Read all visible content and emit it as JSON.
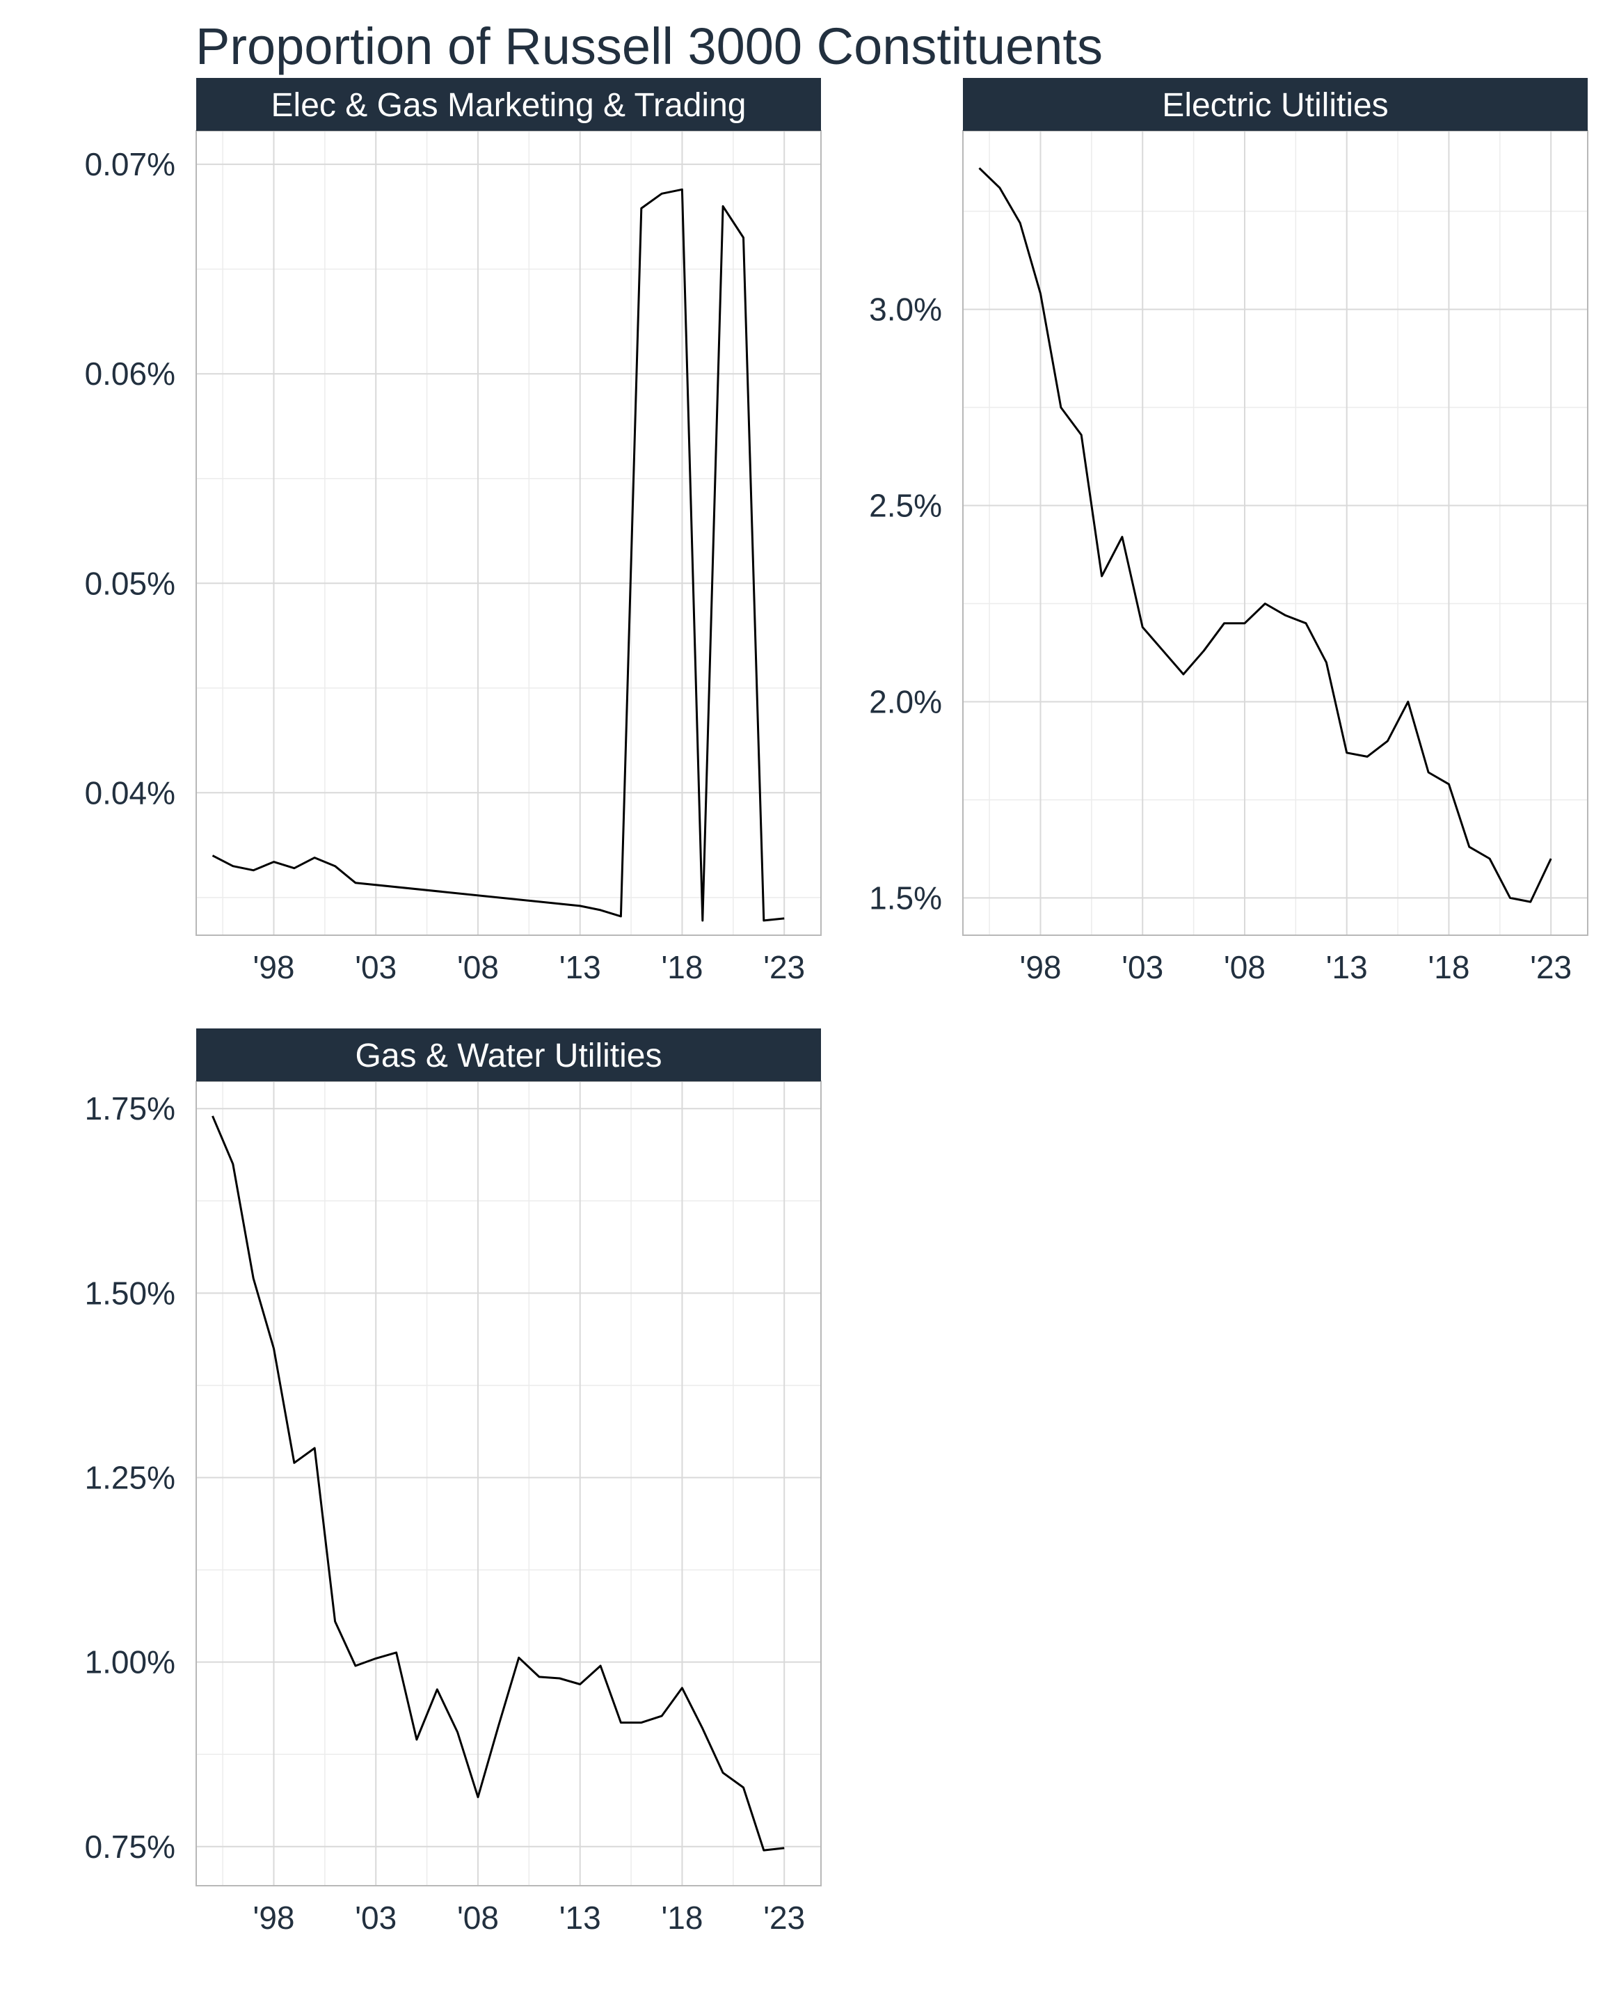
{
  "title": "Proportion of Russell 3000 Constituents",
  "colors": {
    "text": "#22303f",
    "strip": "#22303f",
    "line": "#000000",
    "grid": "#d9d9d9"
  },
  "chart_data": [
    {
      "type": "line",
      "facet": "Elec & Gas Marketing & Trading",
      "x_ticks": [
        1998,
        2003,
        2008,
        2013,
        2018,
        2023
      ],
      "x_tick_labels": [
        "'98",
        "'03",
        "'08",
        "'13",
        "'18",
        "'23"
      ],
      "xlim": [
        1994.2,
        2024.8
      ],
      "y_ticks": [
        0.04,
        0.05,
        0.06,
        0.07
      ],
      "y_tick_labels": [
        "0.04%",
        "0.05%",
        "0.06%",
        "0.07%"
      ],
      "ylim": [
        0.0332,
        0.0716
      ],
      "y_unit": "percent",
      "grid": true,
      "x": [
        1995,
        1996,
        1997,
        1998,
        1999,
        2000,
        2001,
        2002,
        2013,
        2014,
        2015,
        2016,
        2017,
        2018,
        2019,
        2020,
        2021,
        2022,
        2023
      ],
      "values": [
        0.037,
        0.0365,
        0.0363,
        0.0367,
        0.0364,
        0.0369,
        0.0365,
        0.0357,
        0.0346,
        0.0344,
        0.0341,
        0.0679,
        0.0686,
        0.0688,
        0.0339,
        0.068,
        0.0665,
        0.0339,
        0.034
      ]
    },
    {
      "type": "line",
      "facet": "Electric Utilities",
      "x_ticks": [
        1998,
        2003,
        2008,
        2013,
        2018,
        2023
      ],
      "x_tick_labels": [
        "'98",
        "'03",
        "'08",
        "'13",
        "'18",
        "'23"
      ],
      "xlim": [
        1994.2,
        2024.8
      ],
      "y_ticks": [
        1.5,
        2.0,
        2.5,
        3.0
      ],
      "y_tick_labels": [
        "1.5%",
        "2.0%",
        "2.5%",
        "3.0%"
      ],
      "ylim": [
        1.405,
        3.455
      ],
      "y_unit": "percent",
      "grid": true,
      "x": [
        1995,
        1996,
        1997,
        1998,
        1999,
        2000,
        2001,
        2002,
        2003,
        2004,
        2005,
        2006,
        2007,
        2008,
        2009,
        2010,
        2011,
        2012,
        2013,
        2014,
        2015,
        2016,
        2017,
        2018,
        2019,
        2020,
        2021,
        2022,
        2023
      ],
      "values": [
        3.36,
        3.31,
        3.22,
        3.04,
        2.75,
        2.68,
        2.32,
        2.42,
        2.19,
        2.13,
        2.07,
        2.13,
        2.2,
        2.2,
        2.25,
        2.22,
        2.2,
        2.1,
        1.87,
        1.86,
        1.9,
        2.0,
        1.82,
        1.79,
        1.63,
        1.6,
        1.5,
        1.49,
        1.6
      ]
    },
    {
      "type": "line",
      "facet": "Gas & Water Utilities",
      "x_ticks": [
        1998,
        2003,
        2008,
        2013,
        2018,
        2023
      ],
      "x_tick_labels": [
        "'98",
        "'03",
        "'08",
        "'13",
        "'18",
        "'23"
      ],
      "xlim": [
        1994.2,
        2024.8
      ],
      "y_ticks": [
        0.75,
        1.0,
        1.25,
        1.5,
        1.75
      ],
      "y_tick_labels": [
        "0.75%",
        "1.00%",
        "1.25%",
        "1.50%",
        "1.75%"
      ],
      "ylim": [
        0.697,
        1.787
      ],
      "y_unit": "percent",
      "grid": true,
      "x": [
        1995,
        1996,
        1997,
        1998,
        1999,
        2000,
        2001,
        2002,
        2003,
        2004,
        2005,
        2006,
        2007,
        2008,
        2009,
        2010,
        2011,
        2012,
        2013,
        2014,
        2015,
        2016,
        2017,
        2018,
        2019,
        2020,
        2021,
        2022,
        2023
      ],
      "values": [
        1.74,
        1.675,
        1.52,
        1.425,
        1.27,
        1.29,
        1.055,
        0.995,
        1.005,
        1.013,
        0.895,
        0.963,
        0.905,
        0.817,
        0.913,
        1.006,
        0.98,
        0.978,
        0.97,
        0.995,
        0.918,
        0.918,
        0.927,
        0.965,
        0.91,
        0.85,
        0.83,
        0.745,
        0.748
      ]
    }
  ]
}
